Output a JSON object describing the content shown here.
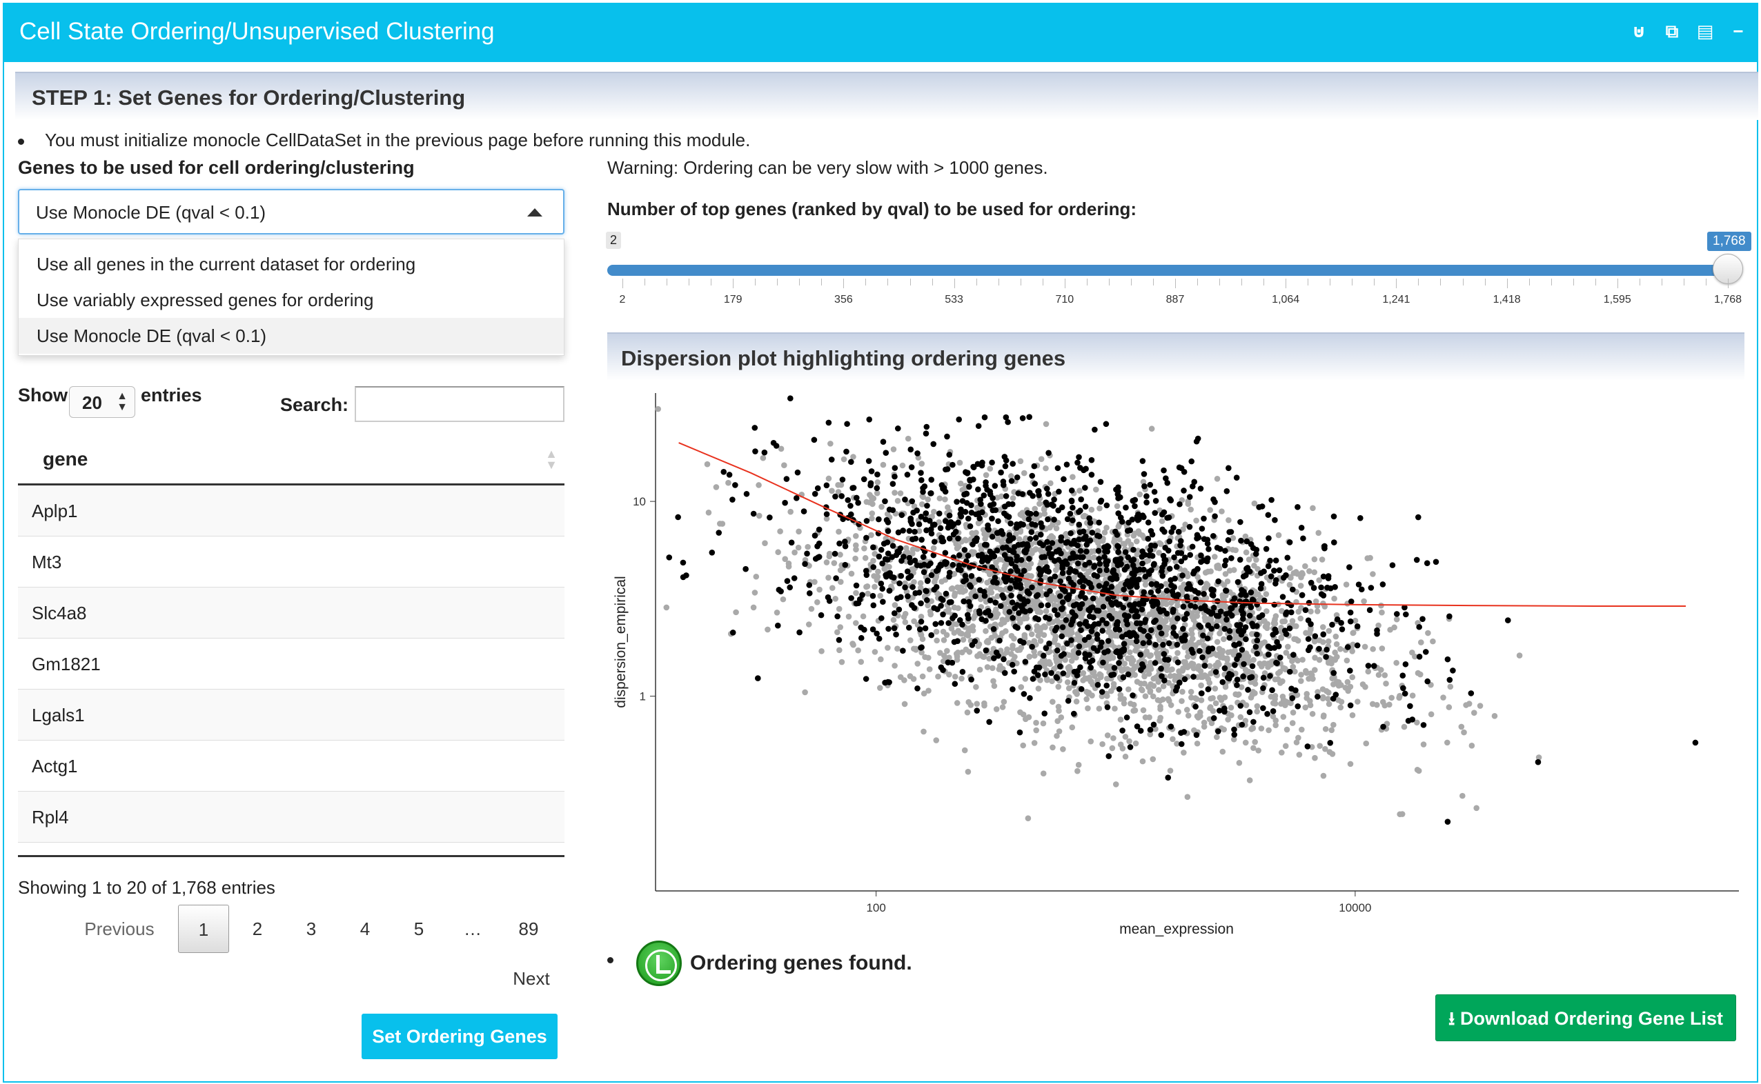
{
  "window": {
    "title": "Cell State Ordering/Unsupervised Clustering"
  },
  "toolbar": {
    "icons": [
      "plug-icon",
      "copy-icon",
      "save-icon",
      "minimize-icon"
    ]
  },
  "step1": {
    "header": "STEP 1: Set Genes for Ordering/Clustering",
    "note": "You must initialize monocle CellDataSet in the previous page before running this module.",
    "genes_label": "Genes to be used for cell ordering/clustering",
    "select_value": "Use Monocle DE (qval < 0.1)",
    "options": [
      "Use all genes in the current dataset for ordering",
      "Use variably expressed genes for ordering",
      "Use Monocle DE (qval < 0.1)"
    ],
    "selected_index": 2
  },
  "table": {
    "show_label": "Show",
    "entries_value": "20",
    "entries_label": "entries",
    "search_label": "Search:",
    "search_value": "",
    "column": "gene",
    "rows": [
      "Aplp1",
      "Mt3",
      "Slc4a8",
      "Gm1821",
      "Lgals1",
      "Actg1",
      "Rpl4"
    ],
    "info": "Showing 1 to 20 of 1,768 entries",
    "pager": {
      "previous": "Previous",
      "pages": [
        "1",
        "2",
        "3",
        "4",
        "5",
        "…",
        "89"
      ],
      "current": "1",
      "next": "Next"
    }
  },
  "buttons": {
    "set_ordering": "Set Ordering Genes",
    "download": "Download Ordering Gene List"
  },
  "right": {
    "warning": "Warning: Ordering can be very slow with > 1000 genes.",
    "slider_label": "Number of top genes (ranked by qval) to be used for ordering:",
    "slider": {
      "min": 2,
      "max": 1768,
      "value": 1768,
      "min_label": "2",
      "max_label": "1,768",
      "ticks": [
        "2",
        "179",
        "356",
        "533",
        "710",
        "887",
        "1,064",
        "1,241",
        "1,418",
        "1,595",
        "1,768"
      ]
    },
    "dispersion_header": "Dispersion plot highlighting ordering genes",
    "status": "Ordering genes found."
  },
  "chart_data": {
    "type": "scatter",
    "title": "",
    "xlabel": "mean_expression",
    "ylabel": "dispersion_empirical",
    "x_scale": "log10",
    "y_scale": "log10",
    "xlim": [
      12,
      400000
    ],
    "ylim": [
      0.1,
      36
    ],
    "x_ticks": [
      {
        "value": 100,
        "label": "100"
      },
      {
        "value": 10000,
        "label": "10000"
      }
    ],
    "y_ticks": [
      {
        "value": 1,
        "label": "1"
      },
      {
        "value": 10,
        "label": "10"
      }
    ],
    "series": [
      {
        "color": "#a9a9a9"
      },
      {
        "color": "#000000"
      }
    ],
    "fit_line": {
      "color": "#e8321e",
      "x": [
        15,
        30,
        60,
        120,
        250,
        500,
        1000,
        2000,
        4000,
        10000,
        30000,
        100000,
        240000
      ],
      "y": [
        20,
        14,
        9.4,
        6.4,
        4.7,
        3.8,
        3.3,
        3.1,
        3.0,
        2.95,
        2.92,
        2.9,
        2.9
      ]
    },
    "grid": false,
    "legend": "none"
  }
}
